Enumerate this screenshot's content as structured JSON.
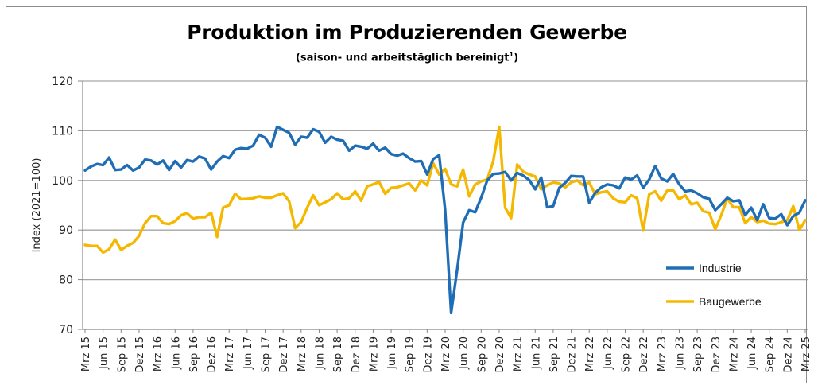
{
  "chart_data": {
    "type": "line",
    "title": "Produktion im Produzierenden Gewerbe",
    "subtitle": "(saison- und arbeitstäglich bereinigt",
    "subtitle_sup": "1",
    "subtitle_end": ")",
    "xlabel": "",
    "ylabel": "Index (2021=100)",
    "ylim": [
      70,
      120
    ],
    "yticks": [
      70,
      80,
      90,
      100,
      110,
      120
    ],
    "grid": true,
    "legend_position": "bottom-right",
    "x_tick_labels": [
      "Mrz 15",
      "Jun 15",
      "Sep 15",
      "Dez 15",
      "Mrz 16",
      "Jun 16",
      "Sep 16",
      "Dez 16",
      "Mrz 17",
      "Jun 17",
      "Sep 17",
      "Dez 17",
      "Mrz 18",
      "Jun 18",
      "Sep 18",
      "Dez 18",
      "Mrz 19",
      "Jun 19",
      "Sep 19",
      "Dez 19",
      "Mrz 20",
      "Jun 20",
      "Sep 20",
      "Dez 20",
      "Mrz 21",
      "Jun 21",
      "Sep 21",
      "Dez 21",
      "Mrz 22",
      "Jun 22",
      "Sep 22",
      "Dez 22",
      "Mrz 23",
      "Jun 23",
      "Sep 23",
      "Dez 23",
      "Mrz 24",
      "Jun 24",
      "Sep 24",
      "Dez 24",
      "Mrz 25"
    ],
    "x_start": "Mrz 15",
    "x_end": "Mrz 25",
    "x_frequency": "monthly",
    "series": [
      {
        "name": "Industrie",
        "color": "#1f6db5",
        "values": [
          102.0,
          102.8,
          103.3,
          103.1,
          104.6,
          102.1,
          102.2,
          103.1,
          102.0,
          102.6,
          104.2,
          104.0,
          103.2,
          104.0,
          102.1,
          103.9,
          102.6,
          104.1,
          103.8,
          104.8,
          104.4,
          102.2,
          103.8,
          104.9,
          104.5,
          106.2,
          106.5,
          106.4,
          107.0,
          109.2,
          108.6,
          106.8,
          110.8,
          110.2,
          109.6,
          107.2,
          108.8,
          108.6,
          110.3,
          109.8,
          107.6,
          108.8,
          108.2,
          108.0,
          106.0,
          107.0,
          106.8,
          106.4,
          107.4,
          106.0,
          106.6,
          105.3,
          105.0,
          105.4,
          104.5,
          103.8,
          103.9,
          101.2,
          104.3,
          105.1,
          94.0,
          73.3,
          82.0,
          91.5,
          94.0,
          93.6,
          96.5,
          100.0,
          101.3,
          101.4,
          101.7,
          100.0,
          101.5,
          101.0,
          100.1,
          98.2,
          100.6,
          94.6,
          94.8,
          98.5,
          99.5,
          100.9,
          100.8,
          100.8,
          95.5,
          97.5,
          98.6,
          99.2,
          99.0,
          98.4,
          100.6,
          100.2,
          101.0,
          98.5,
          100.2,
          102.9,
          100.4,
          99.8,
          101.3,
          99.2,
          97.8,
          98.0,
          97.4,
          96.6,
          96.3,
          94.0,
          95.2,
          96.5,
          95.8,
          96.0,
          93.0,
          94.5,
          92.0,
          95.2,
          92.4,
          92.3,
          93.2,
          91.0,
          92.8,
          93.5,
          96.0
        ]
      },
      {
        "name": "Baugewerbe",
        "color": "#f5b800",
        "values": [
          87.0,
          86.8,
          86.8,
          85.5,
          86.1,
          88.1,
          86.0,
          86.8,
          87.4,
          88.8,
          91.4,
          92.8,
          92.8,
          91.4,
          91.2,
          91.8,
          93.0,
          93.4,
          92.3,
          92.6,
          92.6,
          93.5,
          88.6,
          94.5,
          95.0,
          97.3,
          96.2,
          96.3,
          96.4,
          96.8,
          96.5,
          96.5,
          97.0,
          97.4,
          95.8,
          90.4,
          91.6,
          94.5,
          97.0,
          95.0,
          95.6,
          96.2,
          97.4,
          96.2,
          96.4,
          97.8,
          95.9,
          98.8,
          99.2,
          99.7,
          97.3,
          98.5,
          98.6,
          99.0,
          99.4,
          98.0,
          100.0,
          99.0,
          103.5,
          101.2,
          102.3,
          99.2,
          98.8,
          102.2,
          96.8,
          99.2,
          99.8,
          100.2,
          103.8,
          110.8,
          94.5,
          92.4,
          103.2,
          101.8,
          101.2,
          100.8,
          98.2,
          99.0,
          99.6,
          99.4,
          98.6,
          99.6,
          100.0,
          99.0,
          99.6,
          97.2,
          97.6,
          97.8,
          96.4,
          95.7,
          95.6,
          97.0,
          96.4,
          89.9,
          97.2,
          97.8,
          95.9,
          98.0,
          98.0,
          96.2,
          97.0,
          95.2,
          95.5,
          93.8,
          93.5,
          90.2,
          93.0,
          96.4,
          94.6,
          94.6,
          91.4,
          92.6,
          91.6,
          91.9,
          91.3,
          91.2,
          91.6,
          92.0,
          94.8,
          90.0,
          92.0
        ]
      }
    ]
  }
}
